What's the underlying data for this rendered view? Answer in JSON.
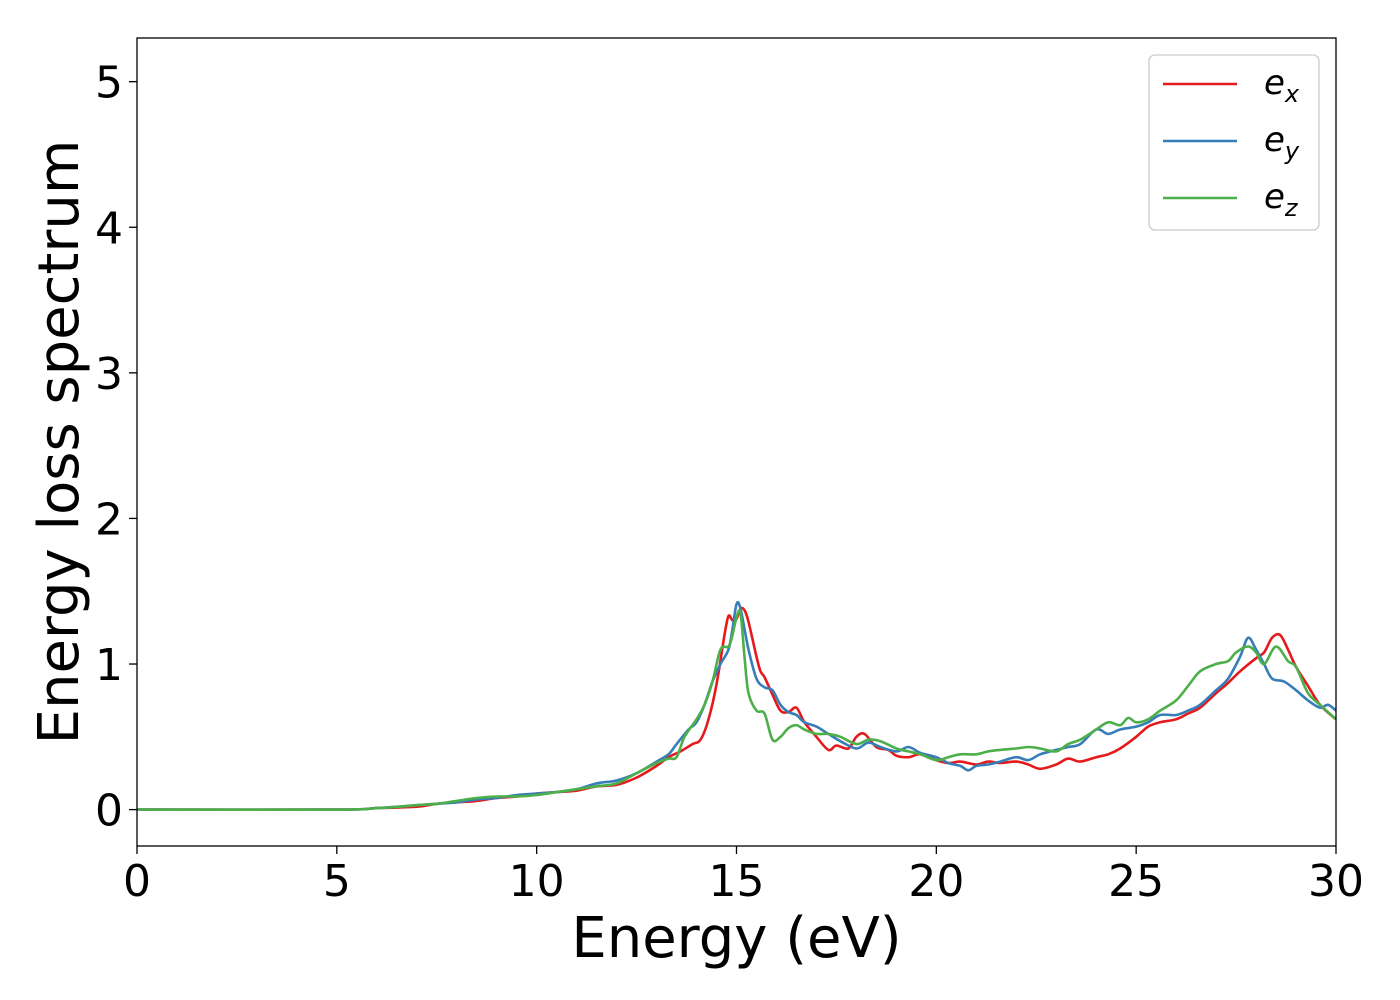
{
  "chart_data": {
    "type": "line",
    "title": "",
    "xlabel": "Energy (eV)",
    "ylabel": "Energy loss spectrum",
    "xlim": [
      0,
      30
    ],
    "ylim": [
      -0.25,
      5.3
    ],
    "xticks": [
      "0",
      "5",
      "10",
      "15",
      "20",
      "25",
      "30"
    ],
    "yticks": [
      "0",
      "1",
      "2",
      "3",
      "4",
      "5"
    ],
    "grid": false,
    "legend_position": "top-right",
    "series": [
      {
        "name": "e",
        "subscript": "x",
        "color": "#e41a1c",
        "x": [
          0,
          5,
          6,
          7,
          7.5,
          8,
          8.5,
          9,
          9.5,
          10,
          10.5,
          11,
          11.5,
          12,
          12.5,
          13,
          13.3,
          13.6,
          13.9,
          14.1,
          14.3,
          14.5,
          14.7,
          14.8,
          14.9,
          15,
          15.1,
          15.2,
          15.3,
          15.5,
          15.6,
          15.7,
          15.9,
          16.1,
          16.3,
          16.5,
          16.7,
          17,
          17.3,
          17.5,
          17.8,
          18,
          18.2,
          18.5,
          18.8,
          19,
          19.3,
          19.6,
          20,
          20.3,
          20.6,
          21,
          21.3,
          21.6,
          22,
          22.3,
          22.6,
          23,
          23.3,
          23.6,
          24,
          24.3,
          24.6,
          25,
          25.3,
          25.6,
          26,
          26.3,
          26.6,
          27,
          27.3,
          27.6,
          28,
          28.2,
          28.4,
          28.6,
          28.8,
          29,
          29.3,
          29.6,
          30
        ],
        "y": [
          0,
          0,
          0.01,
          0.02,
          0.04,
          0.05,
          0.06,
          0.08,
          0.09,
          0.11,
          0.12,
          0.13,
          0.16,
          0.17,
          0.22,
          0.3,
          0.36,
          0.4,
          0.45,
          0.48,
          0.62,
          0.86,
          1.2,
          1.33,
          1.3,
          1.31,
          1.38,
          1.37,
          1.29,
          1.05,
          0.95,
          0.91,
          0.79,
          0.68,
          0.67,
          0.7,
          0.6,
          0.5,
          0.41,
          0.44,
          0.42,
          0.5,
          0.52,
          0.43,
          0.41,
          0.37,
          0.36,
          0.38,
          0.34,
          0.32,
          0.33,
          0.31,
          0.33,
          0.32,
          0.33,
          0.31,
          0.28,
          0.31,
          0.35,
          0.33,
          0.36,
          0.38,
          0.42,
          0.5,
          0.57,
          0.6,
          0.62,
          0.66,
          0.7,
          0.8,
          0.87,
          0.95,
          1.04,
          1.08,
          1.18,
          1.2,
          1.1,
          0.98,
          0.85,
          0.72,
          0.62
        ]
      },
      {
        "name": "e",
        "subscript": "y",
        "color": "#377eb8",
        "x": [
          0,
          5,
          6,
          7,
          7.5,
          8,
          8.5,
          9,
          9.5,
          10,
          10.5,
          11,
          11.5,
          12,
          12.5,
          13,
          13.3,
          13.5,
          13.8,
          14,
          14.2,
          14.4,
          14.6,
          14.8,
          14.9,
          15,
          15.1,
          15.3,
          15.5,
          15.7,
          15.9,
          16.1,
          16.3,
          16.5,
          16.7,
          17,
          17.3,
          17.6,
          18,
          18.3,
          18.6,
          19,
          19.3,
          19.6,
          20,
          20.3,
          20.6,
          20.8,
          21,
          21.3,
          21.6,
          22,
          22.3,
          22.6,
          23,
          23.3,
          23.6,
          24,
          24.3,
          24.6,
          25,
          25.3,
          25.6,
          26,
          26.3,
          26.6,
          27,
          27.3,
          27.6,
          27.8,
          28,
          28.2,
          28.4,
          28.7,
          29,
          29.3,
          29.6,
          29.8,
          30
        ],
        "y": [
          0,
          0,
          0.01,
          0.03,
          0.04,
          0.05,
          0.07,
          0.08,
          0.1,
          0.11,
          0.12,
          0.14,
          0.18,
          0.2,
          0.25,
          0.33,
          0.38,
          0.45,
          0.55,
          0.6,
          0.72,
          0.88,
          1.0,
          1.1,
          1.24,
          1.41,
          1.38,
          1.1,
          0.9,
          0.84,
          0.82,
          0.72,
          0.67,
          0.65,
          0.6,
          0.57,
          0.52,
          0.47,
          0.42,
          0.46,
          0.43,
          0.4,
          0.43,
          0.39,
          0.36,
          0.32,
          0.3,
          0.27,
          0.3,
          0.31,
          0.33,
          0.36,
          0.34,
          0.38,
          0.41,
          0.43,
          0.45,
          0.55,
          0.52,
          0.55,
          0.57,
          0.6,
          0.65,
          0.65,
          0.68,
          0.72,
          0.82,
          0.9,
          1.05,
          1.18,
          1.1,
          1.0,
          0.9,
          0.88,
          0.82,
          0.75,
          0.7,
          0.72,
          0.68
        ]
      },
      {
        "name": "e",
        "subscript": "z",
        "color": "#4daf4a",
        "x": [
          0,
          5,
          6,
          7,
          7.5,
          8,
          8.5,
          9,
          9.5,
          10,
          10.5,
          11,
          11.5,
          12,
          12.5,
          13,
          13.3,
          13.5,
          13.7,
          14,
          14.2,
          14.4,
          14.6,
          14.8,
          14.9,
          15,
          15.1,
          15.2,
          15.3,
          15.5,
          15.7,
          15.9,
          16.1,
          16.3,
          16.5,
          16.7,
          17,
          17.3,
          17.6,
          18,
          18.3,
          18.6,
          19,
          19.3,
          19.6,
          20,
          20.3,
          20.6,
          21,
          21.3,
          21.6,
          22,
          22.3,
          22.6,
          23,
          23.3,
          23.6,
          24,
          24.3,
          24.6,
          24.8,
          25,
          25.3,
          25.6,
          26,
          26.3,
          26.6,
          27,
          27.3,
          27.5,
          27.8,
          28,
          28.2,
          28.5,
          28.8,
          29,
          29.3,
          29.6,
          30
        ],
        "y": [
          0,
          0,
          0.01,
          0.03,
          0.04,
          0.06,
          0.08,
          0.09,
          0.09,
          0.1,
          0.12,
          0.14,
          0.16,
          0.18,
          0.25,
          0.32,
          0.35,
          0.36,
          0.5,
          0.62,
          0.72,
          0.88,
          1.1,
          1.12,
          1.2,
          1.32,
          1.35,
          1.05,
          0.8,
          0.68,
          0.66,
          0.48,
          0.5,
          0.56,
          0.58,
          0.55,
          0.52,
          0.52,
          0.5,
          0.45,
          0.48,
          0.47,
          0.42,
          0.4,
          0.38,
          0.34,
          0.36,
          0.38,
          0.38,
          0.4,
          0.41,
          0.42,
          0.43,
          0.42,
          0.4,
          0.45,
          0.48,
          0.55,
          0.6,
          0.58,
          0.63,
          0.6,
          0.62,
          0.68,
          0.75,
          0.85,
          0.95,
          1.0,
          1.02,
          1.08,
          1.12,
          1.08,
          1.0,
          1.12,
          1.02,
          0.98,
          0.8,
          0.72,
          0.62
        ]
      }
    ]
  }
}
